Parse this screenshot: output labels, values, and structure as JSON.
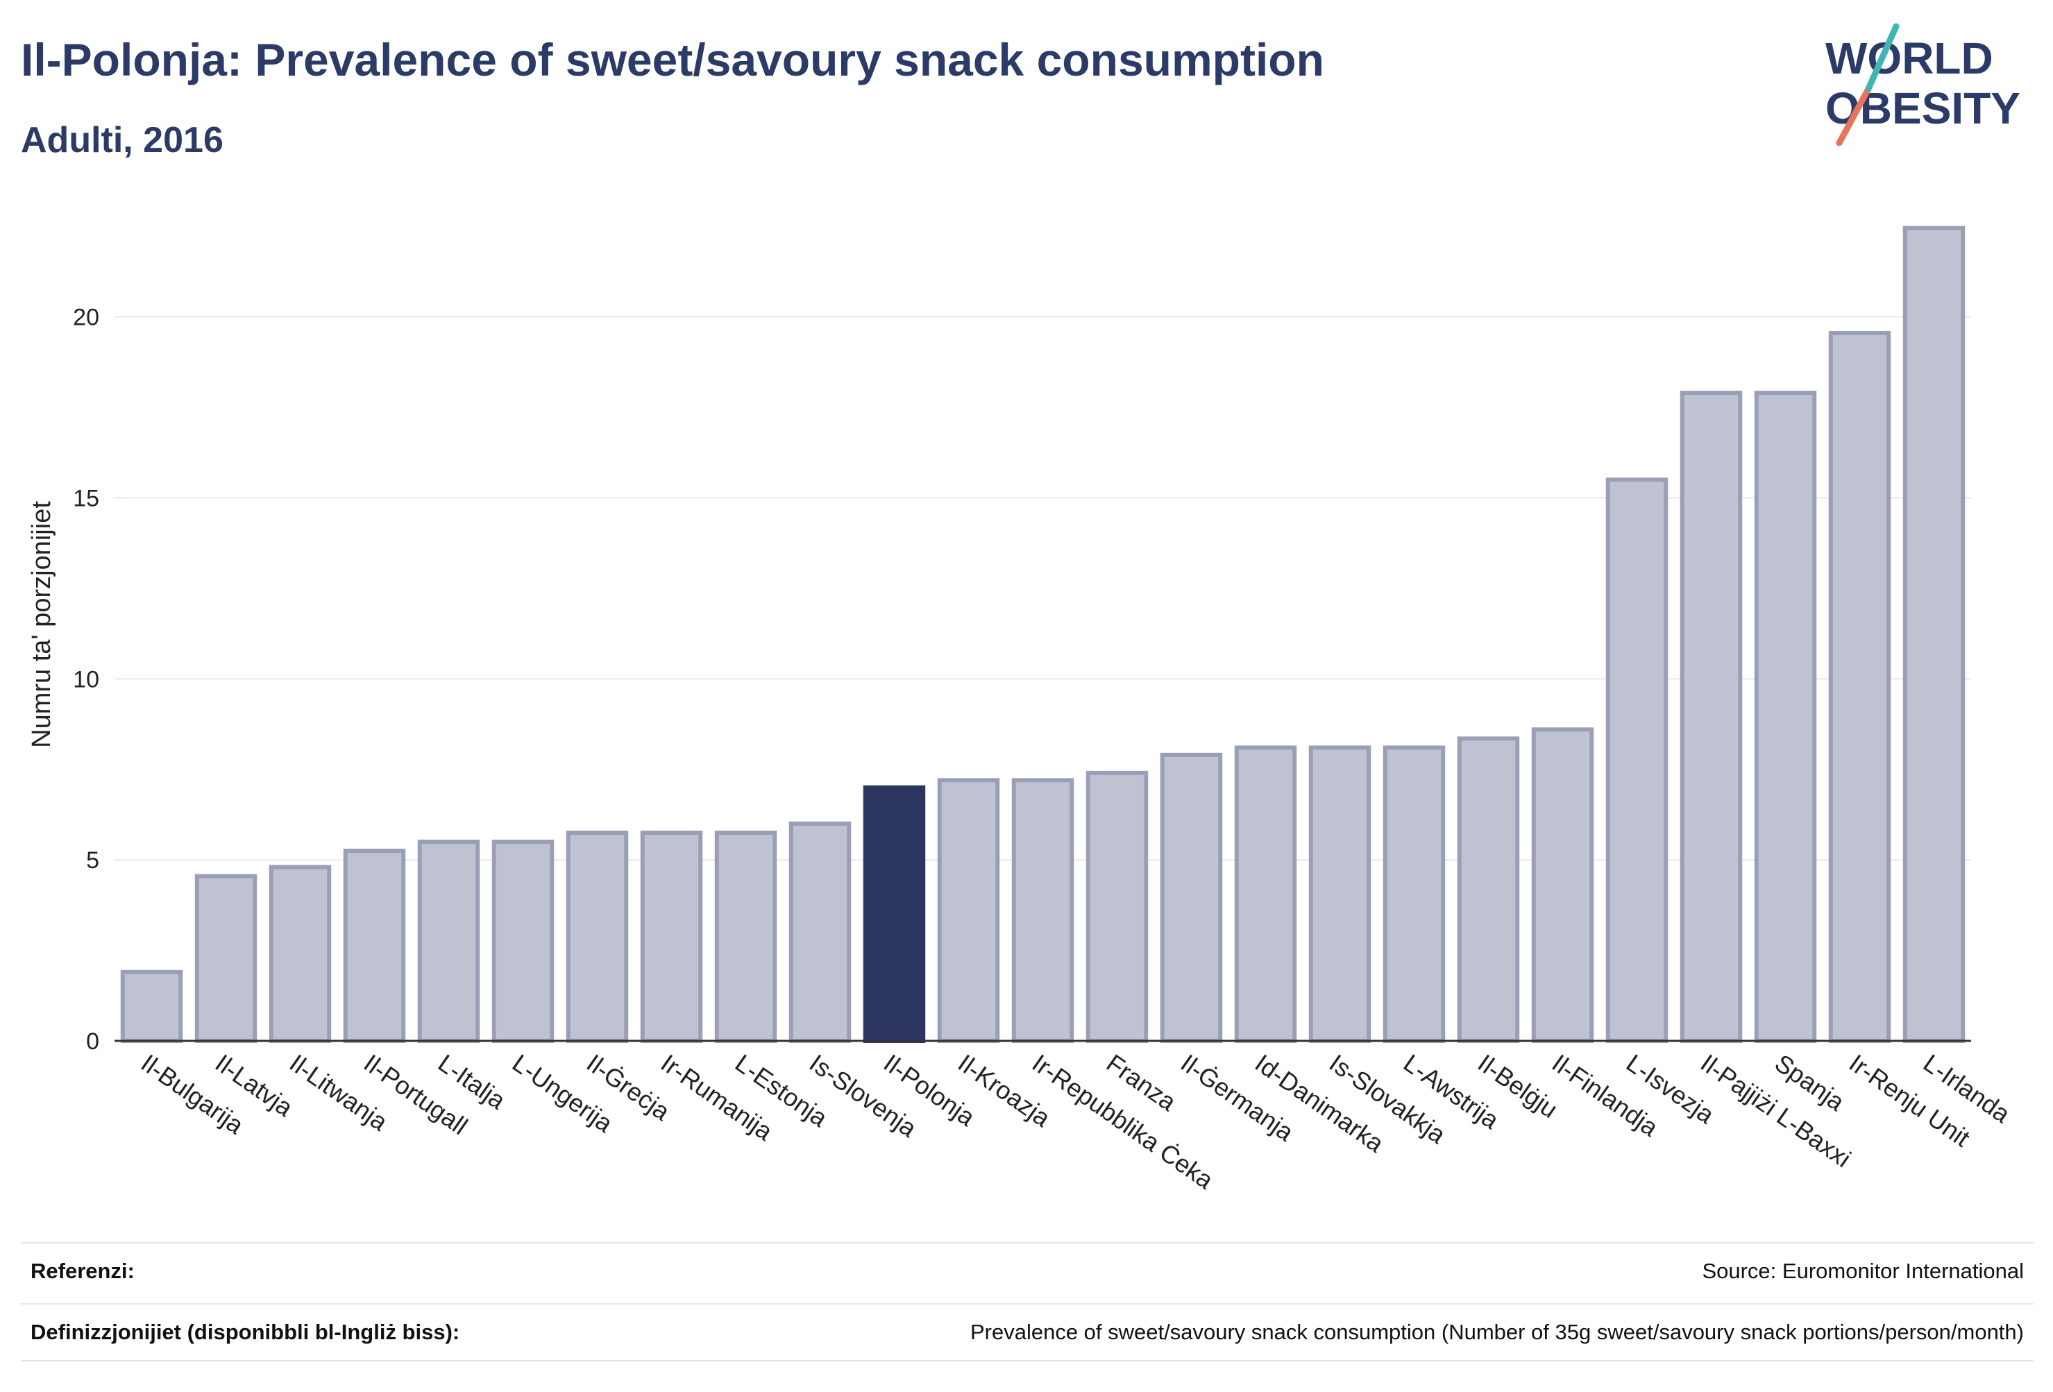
{
  "header": {
    "title": "Il-Polonja: Prevalence of sweet/savoury snack consumption",
    "subtitle": "Adulti, 2016"
  },
  "logo": {
    "line1": "WORLD",
    "line2": "OBESITY"
  },
  "colors": {
    "bar": "#bfc2d1",
    "bar_stroke": "#9a9fb6",
    "highlight": "#2b3560",
    "title": "#2b3a67",
    "grid": "#e8e8ee"
  },
  "chart_data": {
    "type": "bar",
    "ylabel": "Numru ta' porzjonijiet",
    "xlabel": "",
    "ylim": [
      0,
      23
    ],
    "yticks": [
      0,
      5,
      10,
      15,
      20
    ],
    "grid": true,
    "highlight": "Il-Polonja",
    "categories": [
      "Il-Bulgarija",
      "Il-Latvja",
      "Il-Litwanja",
      "Il-Portugall",
      "L-Italja",
      "L-Ungerija",
      "Il-Ġreċja",
      "Ir-Rumanija",
      "L-Estonja",
      "Is-Slovenja",
      "Il-Polonja",
      "Il-Kroazja",
      "Ir-Repubblika Ċeka",
      "Franza",
      "Il-Ġermanja",
      "Id-Danimarka",
      "Is-Slovakkja",
      "L-Awstrija",
      "Il-Belġju",
      "Il-Finlandja",
      "L-Isvezja",
      "Il-Pajjiżi L-Baxxi",
      "Spanja",
      "Ir-Renju Unit",
      "L-Irlanda"
    ],
    "values": [
      1.9,
      4.55,
      4.8,
      5.25,
      5.5,
      5.5,
      5.75,
      5.75,
      5.75,
      6.0,
      7.0,
      7.2,
      7.2,
      7.4,
      7.9,
      8.1,
      8.1,
      8.1,
      8.35,
      8.6,
      15.5,
      17.9,
      17.9,
      19.55,
      22.45
    ]
  },
  "footer": {
    "references_label": "Referenzi:",
    "references_value": "Source: Euromonitor International",
    "definitions_label": "Definizzjonijiet (disponibbli bl-Ingliż biss):",
    "definitions_value": "Prevalence of sweet/savoury snack consumption (Number of 35g sweet/savoury snack portions/person/month)"
  }
}
